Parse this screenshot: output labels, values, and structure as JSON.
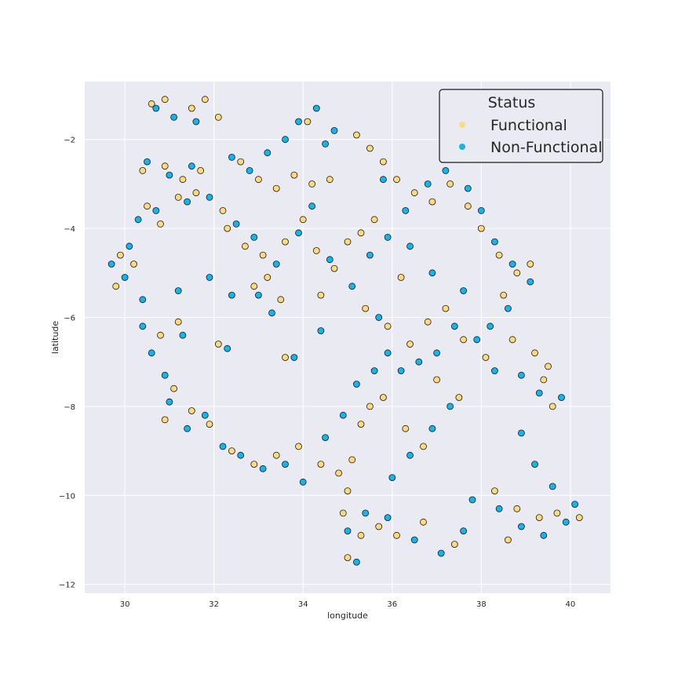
{
  "chart_data": {
    "type": "scatter",
    "title": "",
    "xlabel": "longitude",
    "ylabel": "latitude",
    "xlim": [
      29.1,
      40.9
    ],
    "ylim": [
      -12.2,
      -0.7
    ],
    "xticks": [
      30,
      32,
      34,
      36,
      38,
      40
    ],
    "yticks": [
      -2,
      -4,
      -6,
      -8,
      -10,
      -12
    ],
    "grid": true,
    "legend": {
      "title": "Status",
      "placement": "top-right",
      "entries": [
        "Functional",
        "Non-Functional"
      ]
    },
    "colors": {
      "background": "#eaeaf2",
      "grid": "#ffffff",
      "marker_edge": "#1a1a1a",
      "Functional": "#ffd97a",
      "Non-Functional": "#12b5ee"
    },
    "series": [
      {
        "name": "Functional",
        "color": "#ffd97a",
        "points": [
          [
            30.6,
            -1.2
          ],
          [
            30.9,
            -1.1
          ],
          [
            31.5,
            -1.3
          ],
          [
            31.8,
            -1.1
          ],
          [
            32.1,
            -1.5
          ],
          [
            30.4,
            -2.7
          ],
          [
            30.9,
            -2.6
          ],
          [
            31.3,
            -2.9
          ],
          [
            31.7,
            -2.7
          ],
          [
            30.5,
            -3.5
          ],
          [
            30.8,
            -3.9
          ],
          [
            31.2,
            -3.3
          ],
          [
            31.6,
            -3.2
          ],
          [
            32.2,
            -3.6
          ],
          [
            32.6,
            -2.5
          ],
          [
            33.0,
            -2.9
          ],
          [
            33.4,
            -3.1
          ],
          [
            33.8,
            -2.8
          ],
          [
            34.2,
            -3.0
          ],
          [
            34.6,
            -2.9
          ],
          [
            32.3,
            -4.0
          ],
          [
            32.7,
            -4.4
          ],
          [
            33.1,
            -4.6
          ],
          [
            33.6,
            -4.3
          ],
          [
            34.0,
            -3.8
          ],
          [
            33.2,
            -5.1
          ],
          [
            33.5,
            -5.6
          ],
          [
            32.9,
            -5.3
          ],
          [
            29.9,
            -4.6
          ],
          [
            30.2,
            -4.8
          ],
          [
            29.8,
            -5.3
          ],
          [
            34.3,
            -4.5
          ],
          [
            34.7,
            -4.9
          ],
          [
            35.0,
            -4.3
          ],
          [
            35.3,
            -4.1
          ],
          [
            35.6,
            -3.8
          ],
          [
            35.2,
            -1.9
          ],
          [
            35.5,
            -2.2
          ],
          [
            35.8,
            -2.5
          ],
          [
            36.1,
            -2.9
          ],
          [
            36.5,
            -3.2
          ],
          [
            36.9,
            -3.4
          ],
          [
            37.3,
            -3.0
          ],
          [
            37.7,
            -3.5
          ],
          [
            38.0,
            -4.0
          ],
          [
            38.4,
            -4.6
          ],
          [
            38.8,
            -5.0
          ],
          [
            39.1,
            -4.8
          ],
          [
            38.5,
            -5.5
          ],
          [
            36.2,
            -5.1
          ],
          [
            35.4,
            -5.8
          ],
          [
            35.9,
            -6.2
          ],
          [
            36.4,
            -6.6
          ],
          [
            36.8,
            -6.1
          ],
          [
            37.2,
            -5.8
          ],
          [
            37.6,
            -6.5
          ],
          [
            38.1,
            -6.9
          ],
          [
            38.7,
            -6.5
          ],
          [
            39.2,
            -6.8
          ],
          [
            39.5,
            -7.1
          ],
          [
            37.0,
            -7.4
          ],
          [
            37.5,
            -7.8
          ],
          [
            31.1,
            -7.6
          ],
          [
            31.5,
            -8.1
          ],
          [
            31.9,
            -8.4
          ],
          [
            30.9,
            -8.3
          ],
          [
            32.4,
            -9.0
          ],
          [
            32.9,
            -9.3
          ],
          [
            33.4,
            -9.1
          ],
          [
            33.9,
            -8.9
          ],
          [
            34.4,
            -9.3
          ],
          [
            34.8,
            -9.5
          ],
          [
            35.1,
            -9.2
          ],
          [
            35.3,
            -8.4
          ],
          [
            35.5,
            -8.0
          ],
          [
            35.8,
            -7.8
          ],
          [
            36.3,
            -8.5
          ],
          [
            36.7,
            -8.9
          ],
          [
            35.0,
            -9.9
          ],
          [
            34.9,
            -10.4
          ],
          [
            35.3,
            -10.9
          ],
          [
            35.7,
            -10.7
          ],
          [
            36.1,
            -10.9
          ],
          [
            36.7,
            -10.6
          ],
          [
            37.4,
            -11.1
          ],
          [
            35.0,
            -11.4
          ],
          [
            38.3,
            -9.9
          ],
          [
            38.8,
            -10.3
          ],
          [
            39.3,
            -10.5
          ],
          [
            39.7,
            -10.4
          ],
          [
            40.2,
            -10.5
          ],
          [
            38.6,
            -11.0
          ],
          [
            39.6,
            -8.0
          ],
          [
            39.4,
            -7.4
          ],
          [
            34.4,
            -5.5
          ],
          [
            33.6,
            -6.9
          ],
          [
            32.1,
            -6.6
          ],
          [
            30.8,
            -6.4
          ],
          [
            31.2,
            -6.1
          ],
          [
            34.1,
            -1.6
          ]
        ]
      },
      {
        "name": "Non-Functional",
        "color": "#12b5ee",
        "points": [
          [
            30.7,
            -1.3
          ],
          [
            31.1,
            -1.5
          ],
          [
            31.6,
            -1.6
          ],
          [
            30.5,
            -2.5
          ],
          [
            31.0,
            -2.8
          ],
          [
            31.5,
            -2.6
          ],
          [
            30.3,
            -3.8
          ],
          [
            30.7,
            -3.6
          ],
          [
            31.4,
            -3.4
          ],
          [
            31.9,
            -3.3
          ],
          [
            32.4,
            -2.4
          ],
          [
            32.8,
            -2.7
          ],
          [
            33.2,
            -2.3
          ],
          [
            33.6,
            -2.0
          ],
          [
            33.9,
            -1.6
          ],
          [
            34.3,
            -1.3
          ],
          [
            34.7,
            -1.8
          ],
          [
            34.5,
            -2.1
          ],
          [
            32.5,
            -3.9
          ],
          [
            32.9,
            -4.2
          ],
          [
            33.4,
            -4.8
          ],
          [
            33.9,
            -4.1
          ],
          [
            34.2,
            -3.5
          ],
          [
            33.0,
            -5.5
          ],
          [
            33.3,
            -5.9
          ],
          [
            29.7,
            -4.8
          ],
          [
            30.1,
            -4.4
          ],
          [
            30.0,
            -5.1
          ],
          [
            30.4,
            -5.6
          ],
          [
            30.6,
            -6.8
          ],
          [
            30.9,
            -7.3
          ],
          [
            31.0,
            -7.9
          ],
          [
            31.4,
            -8.5
          ],
          [
            31.8,
            -8.2
          ],
          [
            32.2,
            -8.9
          ],
          [
            32.6,
            -9.1
          ],
          [
            33.1,
            -9.4
          ],
          [
            33.6,
            -9.3
          ],
          [
            34.0,
            -9.7
          ],
          [
            34.5,
            -8.7
          ],
          [
            34.9,
            -8.2
          ],
          [
            35.2,
            -7.5
          ],
          [
            35.6,
            -7.2
          ],
          [
            35.9,
            -6.8
          ],
          [
            36.2,
            -7.2
          ],
          [
            36.6,
            -7.0
          ],
          [
            37.0,
            -6.8
          ],
          [
            37.4,
            -6.2
          ],
          [
            37.9,
            -6.5
          ],
          [
            38.3,
            -7.2
          ],
          [
            38.9,
            -7.3
          ],
          [
            39.3,
            -7.7
          ],
          [
            39.8,
            -7.8
          ],
          [
            38.9,
            -8.6
          ],
          [
            39.2,
            -9.3
          ],
          [
            39.6,
            -9.8
          ],
          [
            38.4,
            -10.3
          ],
          [
            38.9,
            -10.7
          ],
          [
            39.4,
            -10.9
          ],
          [
            39.9,
            -10.6
          ],
          [
            40.1,
            -10.2
          ],
          [
            37.8,
            -10.1
          ],
          [
            37.6,
            -10.8
          ],
          [
            37.1,
            -11.3
          ],
          [
            36.5,
            -11.0
          ],
          [
            35.9,
            -10.5
          ],
          [
            35.4,
            -10.4
          ],
          [
            35.0,
            -10.8
          ],
          [
            35.2,
            -11.5
          ],
          [
            36.0,
            -9.6
          ],
          [
            36.4,
            -9.1
          ],
          [
            36.9,
            -8.5
          ],
          [
            37.3,
            -8.0
          ],
          [
            35.7,
            -6.0
          ],
          [
            35.1,
            -5.3
          ],
          [
            34.6,
            -4.7
          ],
          [
            35.5,
            -4.6
          ],
          [
            35.9,
            -4.2
          ],
          [
            36.3,
            -3.6
          ],
          [
            36.8,
            -3.0
          ],
          [
            37.2,
            -2.7
          ],
          [
            37.7,
            -3.1
          ],
          [
            38.0,
            -3.6
          ],
          [
            38.3,
            -4.3
          ],
          [
            38.7,
            -4.8
          ],
          [
            39.1,
            -5.2
          ],
          [
            38.6,
            -5.8
          ],
          [
            38.2,
            -6.2
          ],
          [
            37.6,
            -5.4
          ],
          [
            36.9,
            -5.0
          ],
          [
            36.4,
            -4.4
          ],
          [
            34.4,
            -6.3
          ],
          [
            33.8,
            -6.9
          ],
          [
            32.3,
            -6.7
          ],
          [
            31.3,
            -6.4
          ],
          [
            30.4,
            -6.2
          ],
          [
            31.9,
            -5.1
          ],
          [
            32.4,
            -5.5
          ],
          [
            31.2,
            -5.4
          ],
          [
            35.8,
            -2.9
          ]
        ]
      }
    ]
  }
}
